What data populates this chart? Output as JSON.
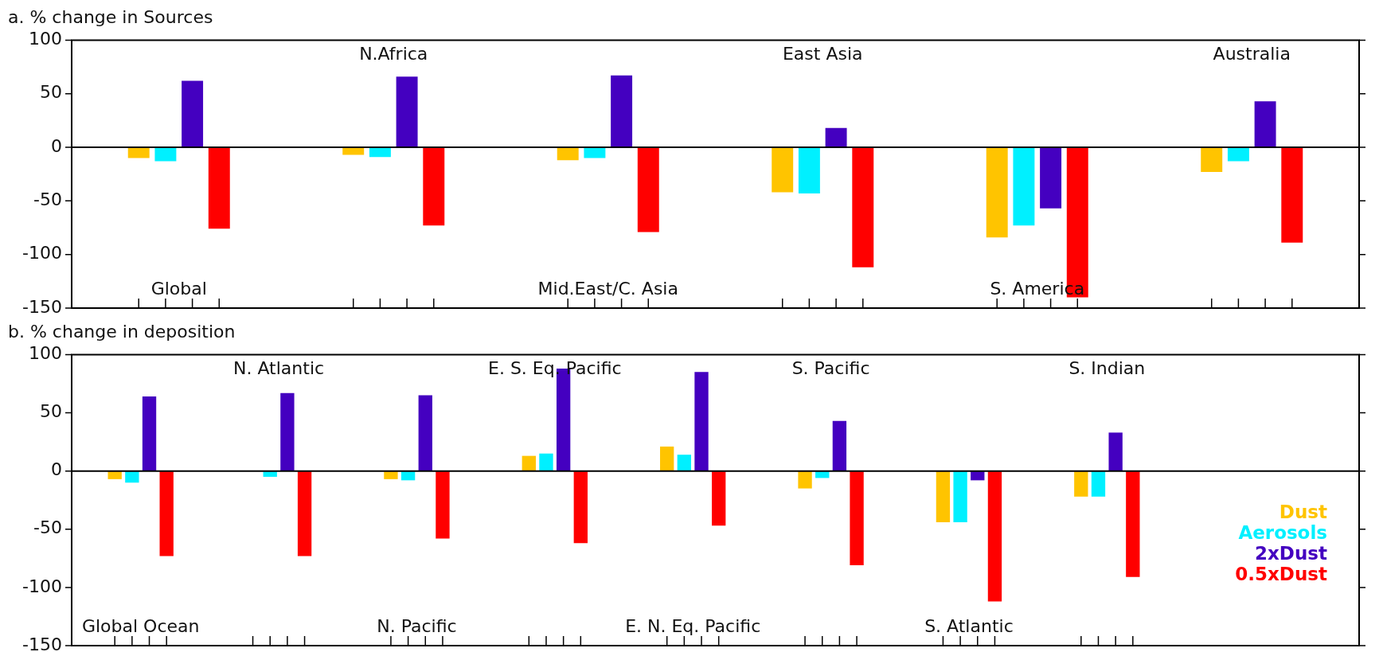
{
  "chart_data": [
    {
      "type": "bar",
      "title": "a. % change in Sources",
      "categories": [
        "Global",
        "N.Africa",
        "Mid.East/C. Asia",
        "East Asia",
        "S. America",
        "Australia"
      ],
      "series": [
        {
          "color": "#ffc400",
          "values": [
            -10,
            -7,
            -12,
            -42,
            -84,
            -23
          ]
        },
        {
          "color": "#00f0ff",
          "values": [
            -13,
            -9,
            -10,
            -43,
            -73,
            -13
          ]
        },
        {
          "color": "#4400c0",
          "values": [
            62,
            66,
            67,
            18,
            -57,
            43
          ]
        },
        {
          "color": "#ff0000",
          "values": [
            -76,
            -73,
            -79,
            -112,
            -140,
            -89
          ]
        }
      ],
      "ylim": [
        -150,
        100
      ],
      "yticks": [
        -150,
        -100,
        -50,
        0,
        50,
        100
      ],
      "ref_lines": [
        {
          "axis": "y",
          "value": 0,
          "color": "#000000"
        }
      ],
      "grid": false,
      "legend": false,
      "tick_labels": "y"
    },
    {
      "type": "bar",
      "title": "b. % change in deposition",
      "categories": [
        "Global Ocean",
        "N. Atlantic",
        "N. Pacific",
        "E. S. Eq. Pacific",
        "E. N. Eq. Pacific",
        "S. Pacific",
        "S. Atlantic",
        "S. Indian"
      ],
      "series": [
        {
          "name": "Dust",
          "color": "#ffc400",
          "values": [
            -7,
            0,
            -7,
            13,
            21,
            -15,
            -44,
            -22
          ]
        },
        {
          "name": "Aerosols",
          "color": "#00f0ff",
          "values": [
            -10,
            -5,
            -8,
            15,
            14,
            -6,
            -44,
            -22
          ]
        },
        {
          "name": "2xDust",
          "color": "#4400c0",
          "values": [
            64,
            67,
            65,
            88,
            85,
            43,
            -8,
            33
          ]
        },
        {
          "name": "0.5xDust",
          "color": "#ff0000",
          "values": [
            -73,
            -73,
            -58,
            -62,
            -47,
            -81,
            -112,
            -91
          ]
        }
      ],
      "ylim": [
        -150,
        100
      ],
      "yticks": [
        -150,
        -100,
        -50,
        0,
        50,
        100
      ],
      "ref_lines": [
        {
          "axis": "y",
          "value": 0,
          "color": "#000000"
        }
      ],
      "grid": false,
      "legend": "bottom right",
      "tick_labels": "y"
    }
  ]
}
